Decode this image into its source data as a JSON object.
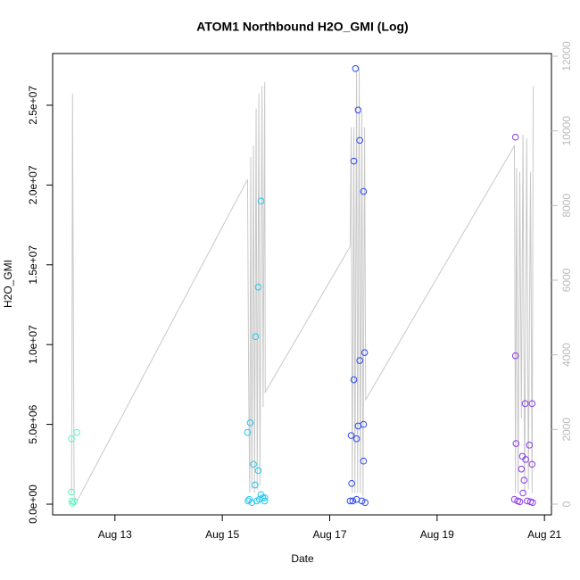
{
  "chart_data": {
    "type": "scatter",
    "title": "ATOM1 Northbound H2O_GMI (Log)",
    "x_label": "Date",
    "y_label": "H2O_GMI",
    "xlim": [
      11.84,
      21.13
    ],
    "xticks": [
      {
        "value": 13,
        "label": "Aug 13"
      },
      {
        "value": 15,
        "label": "Aug 15"
      },
      {
        "value": 17,
        "label": "Aug 17"
      },
      {
        "value": 19,
        "label": "Aug 19"
      },
      {
        "value": 21,
        "label": "Aug 21"
      }
    ],
    "ylim": [
      -670000,
      28240000
    ],
    "yticks": [
      {
        "value": 0,
        "label": "0.0e+00"
      },
      {
        "value": 5000000,
        "label": "5.0e+06"
      },
      {
        "value": 10000000,
        "label": "1.0e+07"
      },
      {
        "value": 15000000,
        "label": "1.5e+07"
      },
      {
        "value": 20000000,
        "label": "2.0e+07"
      },
      {
        "value": 25000000,
        "label": "2.5e+07"
      }
    ],
    "y2lim": [
      -287,
      12072
    ],
    "y2ticks": [
      0,
      2000,
      4000,
      6000,
      8000,
      10000,
      12000
    ],
    "series": [
      {
        "color": "#5ef2c2",
        "x": [
          12.19,
          12.19,
          12.2,
          12.21,
          12.24,
          12.29
        ],
        "values": [
          4100000,
          750000,
          200000,
          50000,
          150000,
          4500000
        ]
      },
      {
        "color": "#22c8f0",
        "x": [
          15.47,
          15.48,
          15.5,
          15.52,
          15.55,
          15.58,
          15.61,
          15.62,
          15.64,
          15.67,
          15.67,
          15.69,
          15.72,
          15.72,
          15.75,
          15.79,
          15.79
        ],
        "values": [
          4500000,
          200000,
          300000,
          5100000,
          100000,
          2500000,
          1200000,
          10500000,
          200000,
          2100000,
          13600000,
          300000,
          19000000,
          600000,
          400000,
          400000,
          200000
        ]
      },
      {
        "color": "#2a48f0",
        "x": [
          17.38,
          17.4,
          17.41,
          17.43,
          17.45,
          17.45,
          17.48,
          17.5,
          17.5,
          17.53,
          17.53,
          17.56,
          17.56,
          17.6,
          17.63,
          17.63,
          17.63,
          17.65,
          17.66
        ],
        "values": [
          200000,
          4300000,
          1300000,
          200000,
          21500000,
          7800000,
          27300000,
          4100000,
          300000,
          24700000,
          4900000,
          22800000,
          9000000,
          200000,
          19600000,
          5000000,
          2700000,
          9500000,
          100000
        ]
      },
      {
        "color": "#8a3ae8",
        "x": [
          20.44,
          20.46,
          20.46,
          20.47,
          20.5,
          20.54,
          20.57,
          20.59,
          20.6,
          20.62,
          20.64,
          20.65,
          20.68,
          20.72,
          20.74,
          20.77,
          20.77,
          20.78
        ],
        "values": [
          300000,
          23000000,
          9300000,
          3800000,
          200000,
          150000,
          2200000,
          3000000,
          700000,
          1500000,
          6300000,
          2800000,
          200000,
          3700000,
          150000,
          6300000,
          2500000,
          100000
        ]
      },
      {
        "type": "line",
        "axis": "y2",
        "color": "#c8c8c8",
        "x": [
          12.19,
          12.2,
          12.21,
          12.24,
          12.27,
          12.3,
          15.47,
          15.49,
          15.51,
          15.53,
          15.55,
          15.58,
          15.6,
          15.63,
          15.65,
          15.68,
          15.7,
          15.74,
          15.76,
          15.79,
          15.8,
          17.38,
          17.4,
          17.42,
          17.45,
          17.47,
          17.5,
          17.52,
          17.55,
          17.57,
          17.6,
          17.62,
          17.65,
          17.67,
          20.44,
          20.46,
          20.48,
          20.51,
          20.54,
          20.57,
          20.6,
          20.63,
          20.67,
          20.7,
          20.74,
          20.77,
          20.79
        ],
        "values": [
          250,
          3200,
          11000,
          200,
          150,
          100,
          8700,
          3500,
          300,
          9300,
          400,
          9600,
          300,
          10600,
          400,
          11000,
          500,
          11200,
          2600,
          11300,
          3000,
          6900,
          10100,
          300,
          10100,
          300,
          11600,
          300,
          11700,
          300,
          10500,
          200,
          10100,
          2800,
          9600,
          300,
          9000,
          300,
          8900,
          2300,
          9900,
          300,
          9800,
          400,
          8900,
          300,
          11200
        ]
      }
    ]
  }
}
